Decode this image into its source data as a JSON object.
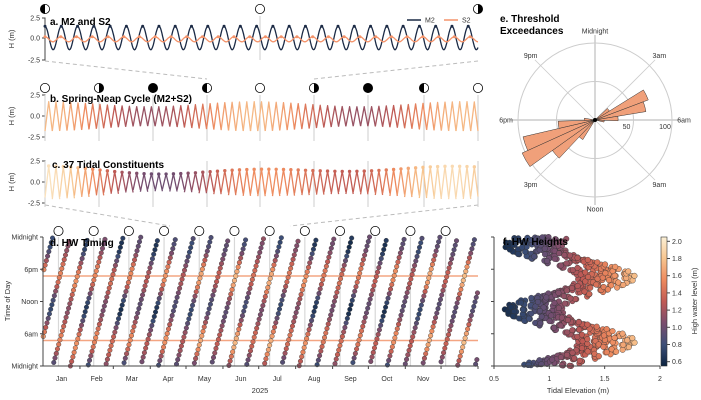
{
  "chart_data": [
    {
      "type": "line",
      "title": "a. M2 and S2",
      "ylabel": "H (m)",
      "yticks": [
        "2.5",
        "0.0",
        "-2.5"
      ],
      "ylim": [
        -2.5,
        2.5
      ],
      "series": [
        {
          "name": "M2",
          "amplitude_m": 1.4,
          "color": "#1b2a45"
        },
        {
          "name": "S2",
          "amplitude_m": 0.3,
          "color": "#f4936a"
        }
      ],
      "moon_phases": [
        "first-quarter",
        "full",
        "last-quarter"
      ]
    },
    {
      "type": "line",
      "title": "b. Spring-Neap Cycle (M2+S2)",
      "ylabel": "H (m)",
      "yticks": [
        "2.5",
        "0.0",
        "-2.5"
      ],
      "ylim": [
        -2.5,
        2.5
      ],
      "moon_phases": [
        "full",
        "last-quarter",
        "new",
        "first-quarter",
        "full",
        "last-quarter",
        "new",
        "first-quarter",
        "full"
      ]
    },
    {
      "type": "line",
      "title": "c. 37 Tidal Constituents",
      "ylabel": "H (m)",
      "yticks": [
        "2.5",
        "0.0",
        "-2.5"
      ],
      "ylim": [
        -2.5,
        2.5
      ]
    },
    {
      "type": "scatter",
      "title": "d. HW Timing",
      "ylabel": "Time of Day",
      "xlabel": "2025",
      "yticks": [
        "Midnight",
        "6pm",
        "Noon",
        "6am",
        "Midnight"
      ],
      "xticks": [
        "Jan",
        "Feb",
        "Mar",
        "Apr",
        "May",
        "Jun",
        "Jul",
        "Aug",
        "Sep",
        "Oct",
        "Nov",
        "Dec"
      ],
      "threshold_hours": [
        4.75,
        16.75
      ],
      "threshold_color": "#f4a582"
    },
    {
      "type": "bar",
      "subtype": "polar",
      "title_line1": "e. Threshold",
      "title_line2": "Exceedances",
      "direction_labels": [
        "Midnight",
        "3am",
        "6am",
        "9am",
        "Noon",
        "3pm",
        "6pm",
        "9pm"
      ],
      "radial_ticks": [
        "50",
        "100"
      ],
      "rlim": [
        0,
        100
      ],
      "bar_color": "#f0a07a",
      "bins": [
        {
          "hour": 3.5,
          "count": 22
        },
        {
          "hour": 4.25,
          "count": 74
        },
        {
          "hour": 5.0,
          "count": 67
        },
        {
          "hour": 5.75,
          "count": 30
        },
        {
          "hour": 6.5,
          "count": 12
        },
        {
          "hour": 14.5,
          "count": 30
        },
        {
          "hour": 15.25,
          "count": 68
        },
        {
          "hour": 16.0,
          "count": 104
        },
        {
          "hour": 16.75,
          "count": 96
        },
        {
          "hour": 17.5,
          "count": 48
        },
        {
          "hour": 18.25,
          "count": 14
        }
      ]
    },
    {
      "type": "scatter",
      "title": "f. HW Heights",
      "xlabel": "Tidal Elevation (m)",
      "xticks": [
        "0.5",
        "1",
        "1.5",
        "2"
      ],
      "xlim": [
        0.5,
        2
      ],
      "colorbar_label": "High water level (m)",
      "colorbar_ticks": [
        "2.0",
        "1.8",
        "1.6",
        "1.4",
        "1.2",
        "1.0",
        "0.8",
        "0.6"
      ],
      "colorbar_range": [
        0.55,
        2.05
      ],
      "colormap": [
        "#0b2340",
        "#3d4f78",
        "#7a4d6e",
        "#c05a54",
        "#ee8a5e",
        "#f7c58f",
        "#fbf0d6"
      ]
    }
  ]
}
